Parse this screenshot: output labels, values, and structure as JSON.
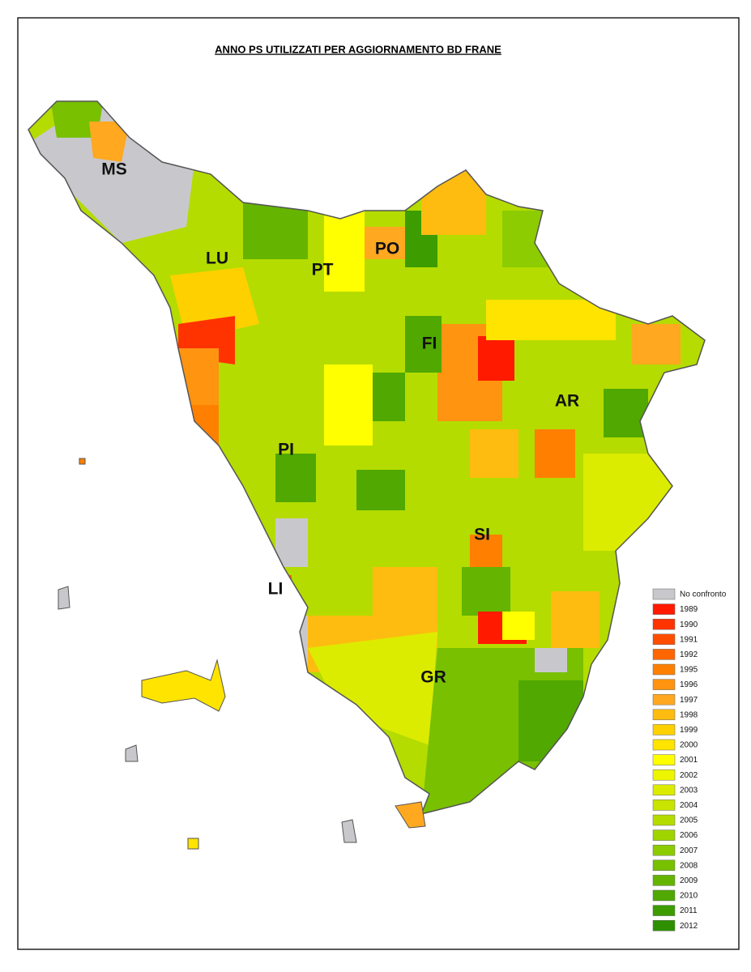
{
  "map": {
    "title": "ANNO PS UTILIZZATI PER AGGIORNAMENTO BD FRANE",
    "provinces": [
      "MS",
      "LU",
      "PT",
      "PO",
      "FI",
      "AR",
      "PI",
      "SI",
      "LI",
      "GR"
    ],
    "legend": [
      {
        "label": "No confronto",
        "color": "#c8c8cc"
      },
      {
        "label": "1989",
        "color": "#ff1a00"
      },
      {
        "label": "1990",
        "color": "#ff3300"
      },
      {
        "label": "1991",
        "color": "#ff4d00"
      },
      {
        "label": "1992",
        "color": "#ff6600"
      },
      {
        "label": "1995",
        "color": "#ff8000"
      },
      {
        "label": "1996",
        "color": "#ff9410"
      },
      {
        "label": "1997",
        "color": "#ffa820"
      },
      {
        "label": "1998",
        "color": "#ffbc10"
      },
      {
        "label": "1999",
        "color": "#ffd000"
      },
      {
        "label": "2000",
        "color": "#ffe400"
      },
      {
        "label": "2001",
        "color": "#ffff00"
      },
      {
        "label": "2002",
        "color": "#eef500"
      },
      {
        "label": "2003",
        "color": "#dcec00"
      },
      {
        "label": "2004",
        "color": "#c8e400"
      },
      {
        "label": "2005",
        "color": "#b4dc00"
      },
      {
        "label": "2006",
        "color": "#a0d400"
      },
      {
        "label": "2007",
        "color": "#8ccc00"
      },
      {
        "label": "2008",
        "color": "#78c000"
      },
      {
        "label": "2009",
        "color": "#64b400"
      },
      {
        "label": "2010",
        "color": "#50a800"
      },
      {
        "label": "2011",
        "color": "#3c9c00"
      },
      {
        "label": "2012",
        "color": "#2e9000"
      }
    ]
  }
}
